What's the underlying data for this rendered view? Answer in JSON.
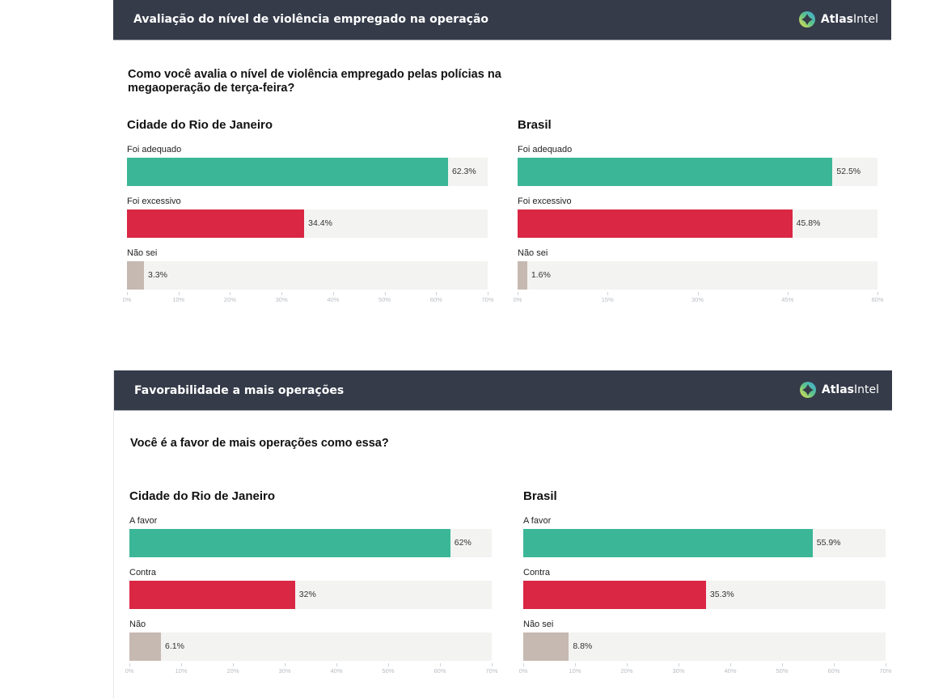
{
  "brand": {
    "name_bold": "Atlas",
    "name_regular": "Intel"
  },
  "panels": [
    {
      "header_title": "Avaliação do nível de violência empregado na operação",
      "question": "Como você avalia o nível de violência empregado pelas polícias na megaoperação de terça-feira?"
    },
    {
      "header_title": "Favorabilidade a mais operações",
      "question": "Você é a favor de mais operações como essa?"
    }
  ],
  "colors": {
    "positive": "#3bb797",
    "negative": "#d92744",
    "neutral": "#c6b9b1",
    "track": "#f3f3f1",
    "header_bg": "#353b49"
  },
  "chart_data": [
    {
      "type": "bar",
      "orientation": "horizontal",
      "title": "Cidade do Rio de Janeiro",
      "categories": [
        "Foi adequado",
        "Foi excessivo",
        "Não sei"
      ],
      "values": [
        62.3,
        34.4,
        3.3
      ],
      "value_labels": [
        "62.3%",
        "34.4%",
        "3.3%"
      ],
      "xlim": [
        0,
        70
      ],
      "ticks": [
        0,
        10,
        20,
        30,
        40,
        50,
        60,
        70
      ],
      "tick_labels": [
        "0%",
        "10%",
        "20%",
        "30%",
        "40%",
        "50%",
        "60%",
        "70%"
      ],
      "xlabel": "",
      "ylabel": "",
      "grid": false
    },
    {
      "type": "bar",
      "orientation": "horizontal",
      "title": "Brasil",
      "categories": [
        "Foi adequado",
        "Foi excessivo",
        "Não sei"
      ],
      "values": [
        52.5,
        45.8,
        1.6
      ],
      "value_labels": [
        "52.5%",
        "45.8%",
        "1.6%"
      ],
      "xlim": [
        0,
        60
      ],
      "ticks": [
        0,
        15,
        30,
        45,
        60
      ],
      "tick_labels": [
        "0%",
        "15%",
        "30%",
        "45%",
        "60%"
      ],
      "xlabel": "",
      "ylabel": "",
      "grid": false
    },
    {
      "type": "bar",
      "orientation": "horizontal",
      "title": "Cidade do Rio de Janeiro",
      "categories": [
        "A favor",
        "Contra",
        "Não"
      ],
      "values": [
        62,
        32,
        6.1
      ],
      "value_labels": [
        "62%",
        "32%",
        "6.1%"
      ],
      "xlim": [
        0,
        70
      ],
      "ticks": [
        0,
        10,
        20,
        30,
        40,
        50,
        60,
        70
      ],
      "tick_labels": [
        "0%",
        "10%",
        "20%",
        "30%",
        "40%",
        "50%",
        "60%",
        "70%"
      ],
      "xlabel": "",
      "ylabel": "",
      "grid": false
    },
    {
      "type": "bar",
      "orientation": "horizontal",
      "title": "Brasil",
      "categories": [
        "A favor",
        "Contra",
        "Não sei"
      ],
      "values": [
        55.9,
        35.3,
        8.8
      ],
      "value_labels": [
        "55.9%",
        "35.3%",
        "8.8%"
      ],
      "xlim": [
        0,
        70
      ],
      "ticks": [
        0,
        10,
        20,
        30,
        40,
        50,
        60,
        70
      ],
      "tick_labels": [
        "0%",
        "10%",
        "20%",
        "30%",
        "40%",
        "50%",
        "60%",
        "70%"
      ],
      "xlabel": "",
      "ylabel": "",
      "grid": false
    }
  ]
}
